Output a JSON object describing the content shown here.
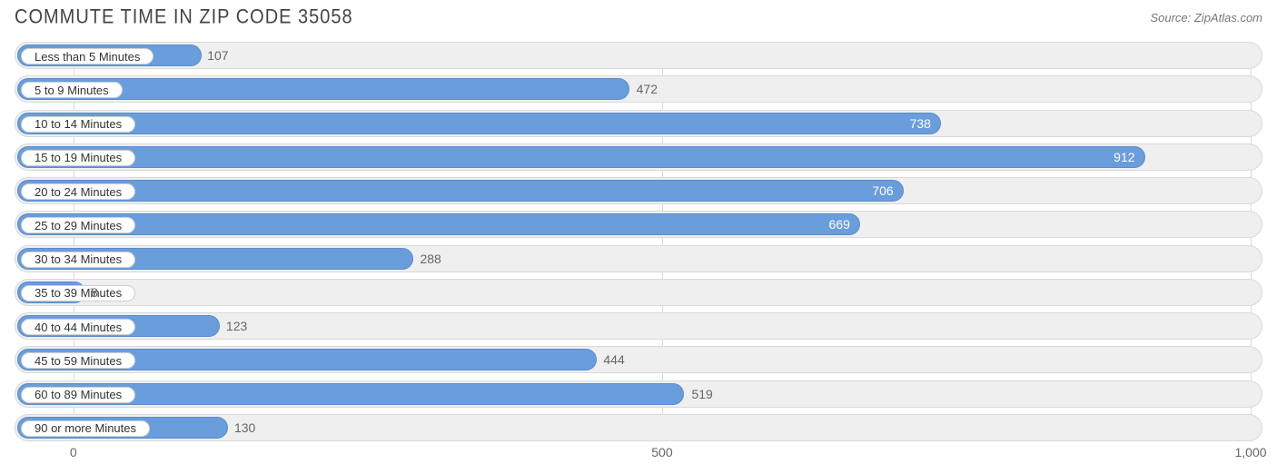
{
  "title": "COMMUTE TIME IN ZIP CODE 35058",
  "source": "Source: ZipAtlas.com",
  "chart": {
    "type": "bar",
    "orientation": "horizontal",
    "track_bg": "#efefef",
    "track_border": "#d9d9d9",
    "grid_color": "#d9d9d9",
    "bar_color": "#6a9ddc",
    "bar_border": "#5a8dcb",
    "pill_bg": "#ffffff",
    "pill_border": "#cfcfcf",
    "value_color_inside": "#ffffff",
    "value_color_outside": "#666666",
    "title_color": "#444444",
    "source_color": "#777777",
    "axis_color": "#666666",
    "title_fontsize": 20,
    "label_fontsize": 13,
    "value_fontsize": 14,
    "axis_fontsize": 14,
    "xmin": -50,
    "xmax": 1010,
    "xticks": [
      0,
      500,
      1000
    ],
    "xtick_labels": [
      "0",
      "500",
      "1,000"
    ],
    "outside_threshold": 580,
    "categories": [
      {
        "label": "Less than 5 Minutes",
        "value": 107
      },
      {
        "label": "5 to 9 Minutes",
        "value": 472
      },
      {
        "label": "10 to 14 Minutes",
        "value": 738
      },
      {
        "label": "15 to 19 Minutes",
        "value": 912
      },
      {
        "label": "20 to 24 Minutes",
        "value": 706
      },
      {
        "label": "25 to 29 Minutes",
        "value": 669
      },
      {
        "label": "30 to 34 Minutes",
        "value": 288
      },
      {
        "label": "35 to 39 Minutes",
        "value": 8
      },
      {
        "label": "40 to 44 Minutes",
        "value": 123
      },
      {
        "label": "45 to 59 Minutes",
        "value": 444
      },
      {
        "label": "60 to 89 Minutes",
        "value": 519
      },
      {
        "label": "90 or more Minutes",
        "value": 130
      }
    ]
  }
}
